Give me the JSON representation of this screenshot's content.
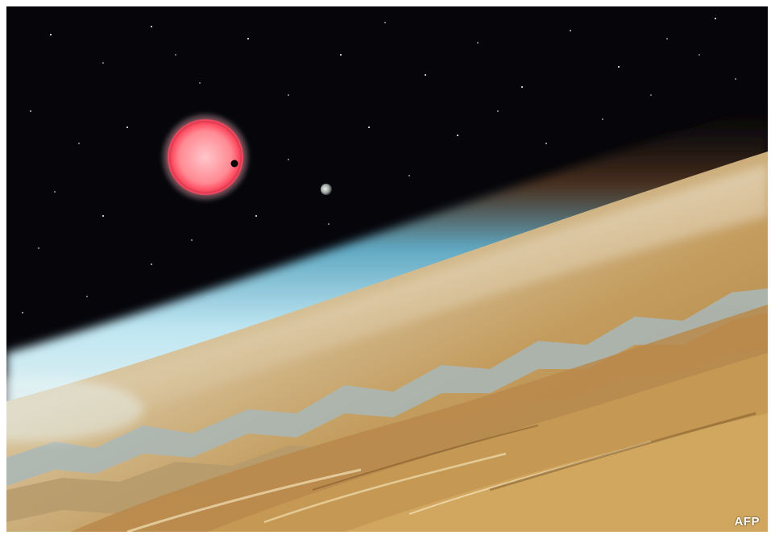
{
  "image": {
    "credit": "AFP",
    "colors": {
      "space": "#05050a",
      "star": "#ff6a7a",
      "star_core": "#ffc4c8",
      "atmosphere": "#bfe3ef",
      "terrain_light": "#e8d3a4",
      "terrain_dark": "#8a6a3a"
    },
    "objects": [
      "red-dwarf-star",
      "transiting-planet",
      "distant-planet",
      "planet-surface",
      "atmosphere-limb",
      "starfield"
    ]
  }
}
